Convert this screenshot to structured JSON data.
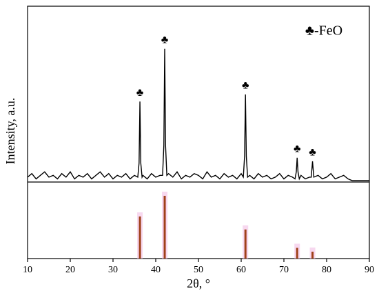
{
  "chart_data": [
    {
      "type": "line",
      "ylabel": "Intensity, a.u.",
      "xlim": [
        10,
        90
      ],
      "ylim": [
        0,
        100
      ],
      "legend_label": "♣-FeO",
      "annotations": [
        {
          "text": "♣",
          "x": 36.3
        },
        {
          "text": "♣",
          "x": 42.1
        },
        {
          "text": "♣",
          "x": 61.0
        },
        {
          "text": "♣",
          "x": 73.1
        },
        {
          "text": "♣",
          "x": 76.7
        }
      ],
      "x": [
        10,
        11,
        12,
        13,
        14,
        15,
        16,
        17,
        18,
        19,
        20,
        21,
        22,
        23,
        24,
        25,
        26,
        27,
        28,
        29,
        30,
        31,
        32,
        33,
        34,
        35,
        35.8,
        36.1,
        36.3,
        36.5,
        36.8,
        37,
        38,
        39,
        40,
        41,
        41.6,
        41.9,
        42.1,
        42.3,
        42.6,
        43,
        44,
        45,
        46,
        47,
        48,
        49,
        50,
        51,
        52,
        53,
        54,
        55,
        56,
        57,
        58,
        59,
        60,
        60.5,
        60.8,
        61.0,
        61.2,
        61.5,
        62,
        63,
        64,
        65,
        66,
        67,
        68,
        69,
        70,
        71,
        72,
        72.6,
        72.9,
        73.1,
        73.3,
        73.6,
        74,
        75,
        76,
        76.4,
        76.6,
        76.7,
        76.8,
        77.0,
        78,
        79,
        80,
        81,
        82,
        83,
        84,
        85,
        86,
        87,
        88,
        89,
        90
      ],
      "series": [
        {
          "color": "#000000",
          "values": [
            2,
            4,
            1,
            3,
            5,
            2,
            3,
            1,
            4,
            2,
            5,
            1,
            3,
            2,
            4,
            1,
            3,
            5,
            2,
            4,
            1,
            3,
            2,
            4,
            1,
            3,
            2,
            10,
            45,
            10,
            2,
            3,
            1,
            4,
            2,
            3,
            3,
            20,
            75,
            20,
            3,
            4,
            2,
            5,
            1,
            3,
            2,
            4,
            3,
            1,
            5,
            2,
            3,
            1,
            4,
            2,
            3,
            1,
            4,
            2,
            14,
            49,
            14,
            2,
            3,
            1,
            4,
            2,
            3,
            1,
            2,
            4,
            1,
            3,
            2,
            1,
            5,
            13,
            5,
            1,
            3,
            1,
            2,
            2,
            8,
            11,
            8,
            2,
            3,
            1,
            2,
            4,
            1,
            2,
            3,
            1,
            0,
            0,
            0,
            0,
            0
          ]
        }
      ]
    },
    {
      "type": "stem",
      "xlabel": "2θ, °",
      "xlim": [
        10,
        90
      ],
      "ylim": [
        0,
        100
      ],
      "xticks": [
        10,
        20,
        30,
        40,
        50,
        60,
        70,
        80,
        90
      ],
      "color": "#a0401a",
      "x": [
        36.3,
        42.1,
        61.0,
        73.1,
        76.7
      ],
      "values": [
        55,
        82,
        38,
        14,
        9
      ]
    }
  ]
}
